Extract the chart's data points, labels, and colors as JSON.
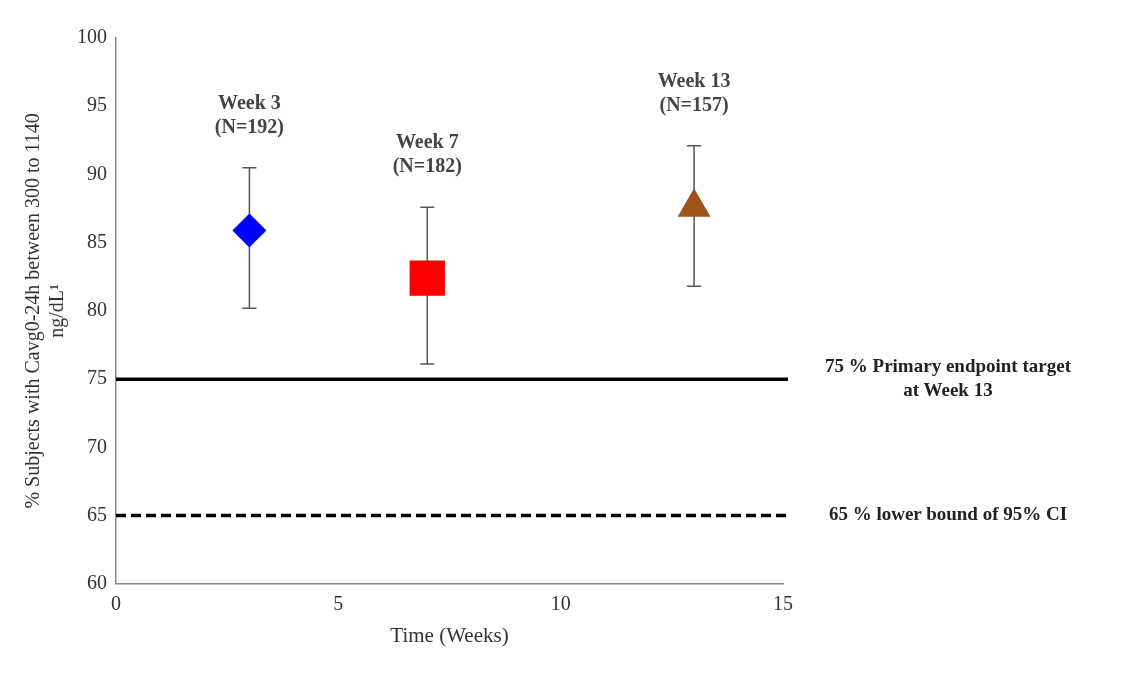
{
  "chart_data": {
    "type": "scatter",
    "xlabel": "Time (Weeks)",
    "ylabel": "% Subjects with Cavg0-24h between 300 to 1140 ng/dL¹",
    "xlim": [
      0,
      15
    ],
    "xticks": [
      0,
      5,
      10,
      15
    ],
    "ylim": [
      60,
      100
    ],
    "yticks": [
      60,
      65,
      70,
      75,
      80,
      85,
      90,
      95,
      100
    ],
    "grid": false,
    "legend": false,
    "series": [
      {
        "x": [
          3
        ],
        "values": [
          85.9
        ],
        "errors": [
          [
            80.2,
            90.5
          ]
        ],
        "color": "#0000ff",
        "marker": "diamond"
      },
      {
        "x": [
          7
        ],
        "values": [
          82.4
        ],
        "errors": [
          [
            76.1,
            87.6
          ]
        ],
        "color": "#ff0000",
        "marker": "square"
      },
      {
        "x": [
          13
        ],
        "values": [
          87.6
        ],
        "errors": [
          [
            81.8,
            92.1
          ]
        ],
        "color": "#a0521d",
        "marker": "triangle"
      }
    ],
    "annotations": [
      "Week 3\n(N=192)",
      "Week 7\n(N=182)",
      "Week 13\n(N=157)"
    ],
    "ref_lines": [
      {
        "axis": "y",
        "value": 75,
        "label": "75 % Primary endpoint target at Week 13",
        "color": "#000000",
        "line_style": "solid"
      },
      {
        "axis": "y",
        "value": 65,
        "label": "65 % lower bound of 95% CI",
        "color": "#000000",
        "line_style": "dashed"
      }
    ]
  }
}
